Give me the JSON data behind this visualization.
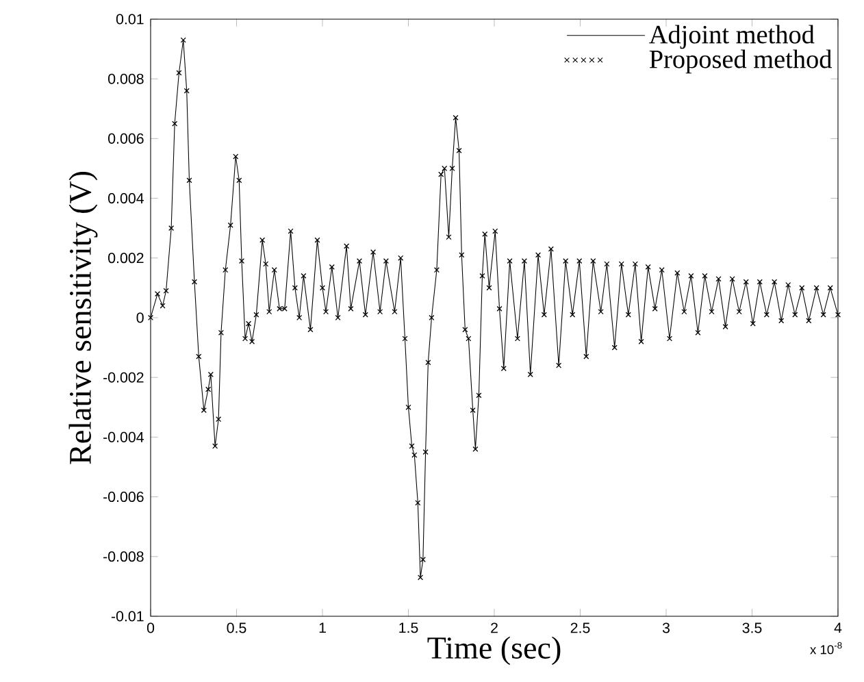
{
  "chart_data": {
    "type": "line",
    "xlabel": "Time (sec)",
    "ylabel": "Relative sensitivity (V)",
    "annotations": [
      "x 10$^{-8}$"
    ],
    "xlim": [
      0,
      4
    ],
    "xticks": [
      0,
      0.5,
      1,
      1.5,
      2,
      2.5,
      3,
      3.5,
      4
    ],
    "ylim": [
      -0.01,
      0.01
    ],
    "yticks": [
      -0.01,
      -0.008,
      -0.006,
      -0.004,
      -0.002,
      0,
      0.002,
      0.004,
      0.006,
      0.008,
      0.01
    ],
    "grid": false,
    "legend": "top right",
    "x": [
      0,
      0.04,
      0.07,
      0.09,
      0.12,
      0.14,
      0.165,
      0.19,
      0.21,
      0.225,
      0.255,
      0.28,
      0.31,
      0.335,
      0.35,
      0.375,
      0.395,
      0.41,
      0.435,
      0.465,
      0.495,
      0.515,
      0.53,
      0.55,
      0.57,
      0.59,
      0.615,
      0.65,
      0.67,
      0.69,
      0.72,
      0.75,
      0.78,
      0.815,
      0.84,
      0.865,
      0.89,
      0.93,
      0.97,
      1.0,
      1.02,
      1.055,
      1.09,
      1.14,
      1.165,
      1.215,
      1.25,
      1.295,
      1.335,
      1.37,
      1.42,
      1.455,
      1.48,
      1.5,
      1.52,
      1.535,
      1.555,
      1.57,
      1.585,
      1.6,
      1.615,
      1.635,
      1.665,
      1.69,
      1.71,
      1.735,
      1.755,
      1.775,
      1.795,
      1.81,
      1.83,
      1.85,
      1.875,
      1.89,
      1.91,
      1.93,
      1.945,
      1.97,
      2.005,
      2.03,
      2.055,
      2.09,
      2.135,
      2.175,
      2.21,
      2.255,
      2.29,
      2.33,
      2.375,
      2.415,
      2.455,
      2.495,
      2.535,
      2.575,
      2.62,
      2.655,
      2.7,
      2.74,
      2.78,
      2.82,
      2.855,
      2.895,
      2.935,
      2.975,
      3.02,
      3.065,
      3.105,
      3.145,
      3.185,
      3.225,
      3.265,
      3.305,
      3.345,
      3.385,
      3.425,
      3.465,
      3.505,
      3.545,
      3.585,
      3.63,
      3.67,
      3.71,
      3.75,
      3.79,
      3.83,
      3.875,
      3.915,
      3.955,
      4.0
    ],
    "series": [
      {
        "name": "Adjoint method",
        "color": "#000000",
        "marker": "none",
        "values": [
          0,
          0.0008,
          0.0004,
          0.0009,
          0.003,
          0.0065,
          0.0082,
          0.0093,
          0.0076,
          0.0046,
          0.0012,
          -0.0013,
          -0.0031,
          -0.0024,
          -0.0019,
          -0.0043,
          -0.0034,
          -0.0005,
          0.0016,
          0.0031,
          0.0054,
          0.0046,
          0.0019,
          -0.0007,
          -0.0002,
          -0.0008,
          0.0001,
          0.0026,
          0.0018,
          0.0002,
          0.0016,
          0.0003,
          0.0003,
          0.0029,
          0.001,
          0,
          0.0014,
          -0.0004,
          0.0026,
          0.001,
          0.0002,
          0.0017,
          0,
          0.0024,
          0.0003,
          0.0019,
          0.0001,
          0.0022,
          0.0002,
          0.0019,
          0.0002,
          0.002,
          -0.0007,
          -0.003,
          -0.0043,
          -0.0046,
          -0.0062,
          -0.0087,
          -0.0081,
          -0.0045,
          -0.0015,
          0,
          0.0016,
          0.0048,
          0.005,
          0.0027,
          0.005,
          0.0067,
          0.0056,
          0.0021,
          -0.0004,
          -0.0007,
          -0.0031,
          -0.0044,
          -0.0026,
          0.0014,
          0.0028,
          0.001,
          0.0029,
          0.0003,
          -0.0017,
          0.0019,
          -0.0007,
          0.0019,
          -0.0019,
          0.0021,
          0.0001,
          0.0023,
          -0.0016,
          0.0019,
          0.0001,
          0.0019,
          -0.0013,
          0.0019,
          0.0002,
          0.0018,
          -0.001,
          0.0018,
          0.0001,
          0.0018,
          -0.0008,
          0.0017,
          0.0003,
          0.0016,
          -0.0007,
          0.0015,
          0.0002,
          0.0014,
          -0.0005,
          0.0014,
          0.0002,
          0.0013,
          -0.0003,
          0.0013,
          0.0002,
          0.0012,
          -0.0002,
          0.0012,
          0.0001,
          0.0012,
          -0.0001,
          0.0011,
          0.0001,
          0.001,
          -0.0001,
          0.001,
          0.0001,
          0.001,
          0.0001
        ]
      },
      {
        "name": "Proposed method",
        "type": "scatter",
        "color": "#000000",
        "marker": "cross",
        "values": [
          0,
          0.0008,
          0.0004,
          0.0009,
          0.003,
          0.0065,
          0.0082,
          0.0093,
          0.0076,
          0.0046,
          0.0012,
          -0.0013,
          -0.0031,
          -0.0024,
          -0.0019,
          -0.0043,
          -0.0034,
          -0.0005,
          0.0016,
          0.0031,
          0.0054,
          0.0046,
          0.0019,
          -0.0007,
          -0.0002,
          -0.0008,
          0.0001,
          0.0026,
          0.0018,
          0.0002,
          0.0016,
          0.0003,
          0.0003,
          0.0029,
          0.001,
          0,
          0.0014,
          -0.0004,
          0.0026,
          0.001,
          0.0002,
          0.0017,
          0,
          0.0024,
          0.0003,
          0.0019,
          0.0001,
          0.0022,
          0.0002,
          0.0019,
          0.0002,
          0.002,
          -0.0007,
          -0.003,
          -0.0043,
          -0.0046,
          -0.0062,
          -0.0087,
          -0.0081,
          -0.0045,
          -0.0015,
          0,
          0.0016,
          0.0048,
          0.005,
          0.0027,
          0.005,
          0.0067,
          0.0056,
          0.0021,
          -0.0004,
          -0.0007,
          -0.0031,
          -0.0044,
          -0.0026,
          0.0014,
          0.0028,
          0.001,
          0.0029,
          0.0003,
          -0.0017,
          0.0019,
          -0.0007,
          0.0019,
          -0.0019,
          0.0021,
          0.0001,
          0.0023,
          -0.0016,
          0.0019,
          0.0001,
          0.0019,
          -0.0013,
          0.0019,
          0.0002,
          0.0018,
          -0.001,
          0.0018,
          0.0001,
          0.0018,
          -0.0008,
          0.0017,
          0.0003,
          0.0016,
          -0.0007,
          0.0015,
          0.0002,
          0.0014,
          -0.0005,
          0.0014,
          0.0002,
          0.0013,
          -0.0003,
          0.0013,
          0.0002,
          0.0012,
          -0.0002,
          0.0012,
          0.0001,
          0.0012,
          -0.0001,
          0.0011,
          0.0001,
          0.001,
          -0.0001,
          0.001,
          0.0001,
          0.001,
          0.0001
        ]
      }
    ]
  }
}
